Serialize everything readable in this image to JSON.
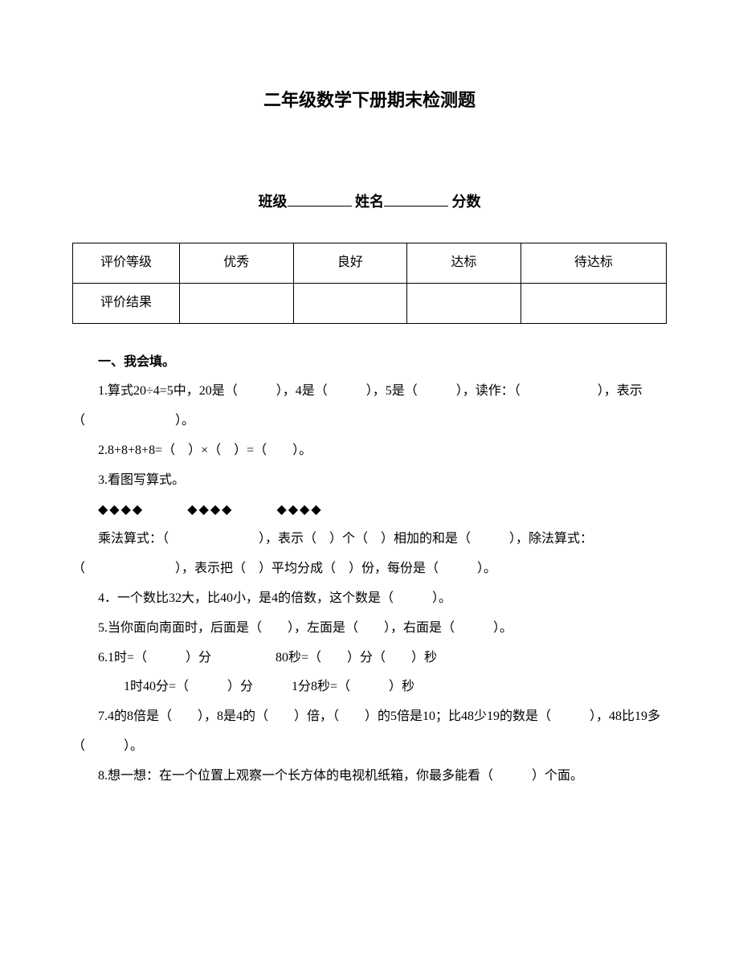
{
  "title": "二年级数学下册期末检测题",
  "info": {
    "class_label": "班级",
    "name_label": "姓名",
    "score_label": "分数"
  },
  "eval_table": {
    "row1_label": "评价等级",
    "row1_c1": "优秀",
    "row1_c2": "良好",
    "row1_c3": "达标",
    "row1_c4": "待达标",
    "row2_label": "评价结果"
  },
  "section1_head": "一、我会填。",
  "q1": "1.算式20÷4=5中，20是（　　　），4是（　　　），5是（　　　），读作：（　　　　　　），表示（　　　　　　　）。",
  "q2": "2.8+8+8+8=（　）×（　）=（　　）。",
  "q3_head": "3.看图写算式。",
  "q3_diamonds": "◆◆◆◆　　　◆◆◆◆　　　◆◆◆◆",
  "q3_line1": "乘法算式：（　　　　　　　），表示（　）个（　）相加的和是（　　　），除法算式：（　　　　　　　），表示把（　）平均分成（　）份，每份是（　　　）。",
  "q4": "4．一个数比32大，比40小，是4的倍数，这个数是（　　　）。",
  "q5": "5.当你面向南面时，后面是（　　），左面是（　　），右面是（　　　）。",
  "q6_line1": "6.1时=（　　　）分　　　　　80秒=（　　）分（　　）秒",
  "q6_line2": "1时40分=（　　　）分　　　1分8秒=（　　　）秒",
  "q7": "7.4的8倍是（　　），8是4的（　　）倍，（　　）的5倍是10；比48少19的数是（　　　），48比19多（　　　）。",
  "q8": "8.想一想：在一个位置上观察一个长方体的电视机纸箱，你最多能看（　　　）个面。"
}
